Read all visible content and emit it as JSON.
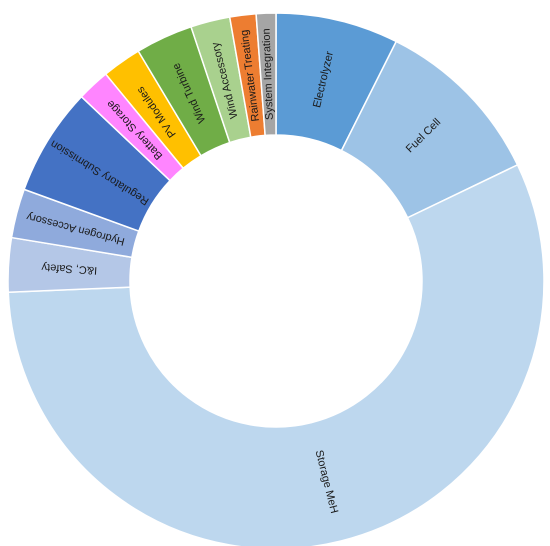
{
  "chart_data": {
    "type": "pie",
    "variant": "donut",
    "title": "",
    "legend": "none",
    "categories": [
      "Electrolyzer",
      "Fuel Cell",
      "Storage MeH",
      "I&C, Safety",
      "Hydrogen Accessory",
      "Regulatory Submission",
      "Battery Storage",
      "PV Modules",
      "Wind Turbine",
      "Wind Accessory",
      "Rainwater Treating",
      "System Integration"
    ],
    "values": [
      7.5,
      10.6,
      57.2,
      3.3,
      3.0,
      6.6,
      2.0,
      2.4,
      3.5,
      2.4,
      1.6,
      1.2
    ],
    "unit": "%",
    "colors": [
      "#5b9bd5",
      "#9dc3e6",
      "#bdd7ee",
      "#b4c7e7",
      "#8faadc",
      "#4472c4",
      "#ff85ff",
      "#ffc000",
      "#70ad47",
      "#a9d18e",
      "#ed7d31",
      "#a5a5a5"
    ]
  }
}
